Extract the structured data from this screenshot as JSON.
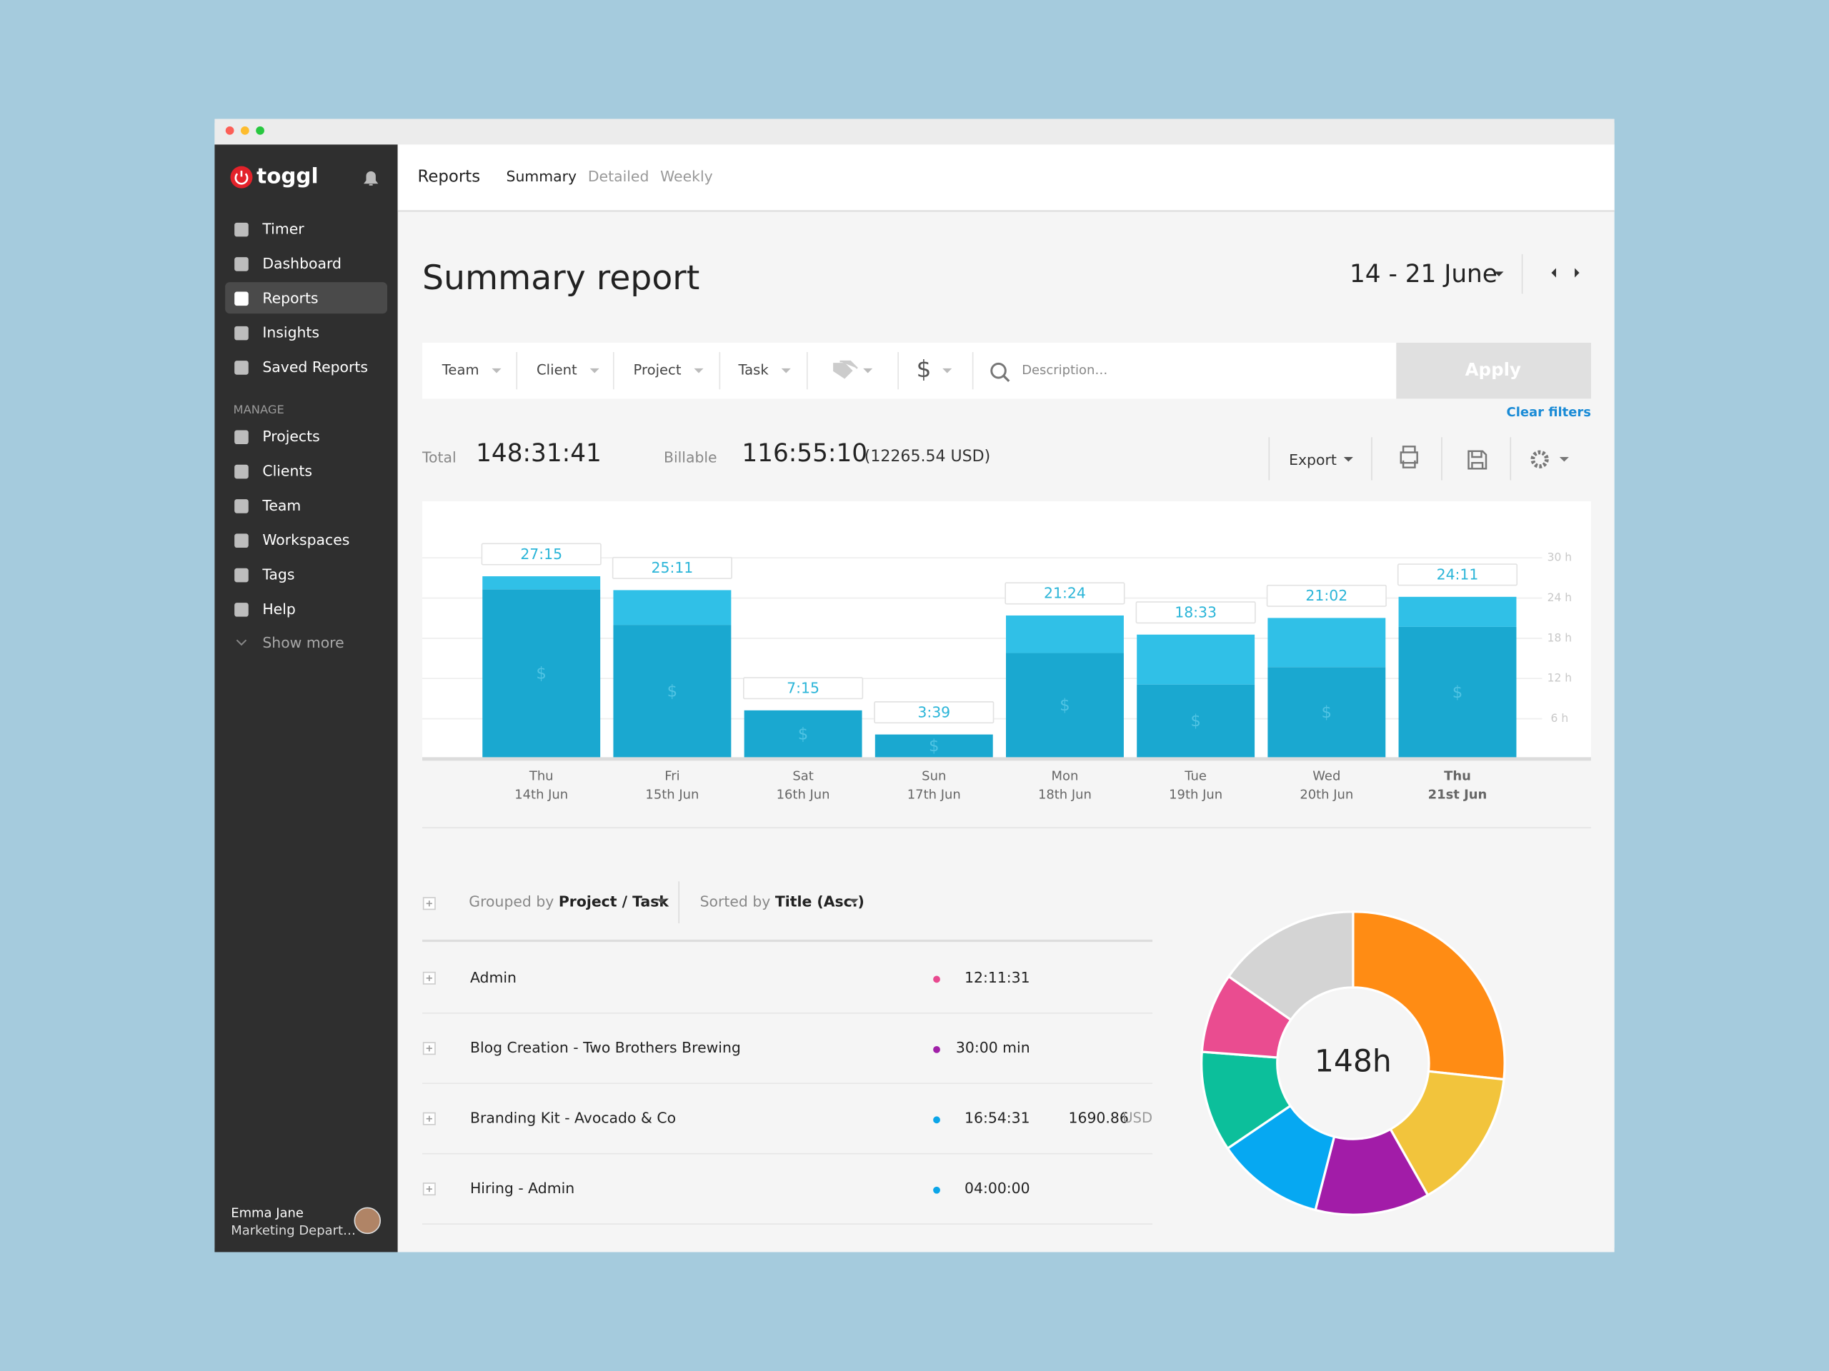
{
  "sidebar": {
    "logo": "toggl",
    "nav": [
      "Timer",
      "Dashboard",
      "Reports",
      "Insights",
      "Saved Reports"
    ],
    "manage_heading": "MANAGE",
    "manage": [
      "Projects",
      "Clients",
      "Team",
      "Workspaces",
      "Tags",
      "Help"
    ],
    "show_more": "Show more",
    "user": {
      "name": "Emma Jane",
      "department": "Marketing Depart…"
    }
  },
  "tabs": {
    "section": "Reports",
    "items": [
      "Summary",
      "Detailed",
      "Weekly"
    ]
  },
  "title": "Summary report",
  "date_range": "14 - 21 June",
  "filters": {
    "items": [
      "Team",
      "Client",
      "Project",
      "Task"
    ],
    "description_placeholder": "Description…",
    "apply": "Apply",
    "clear": "Clear filters"
  },
  "totals": {
    "total_label": "Total",
    "total": "148:31:41",
    "billable_label": "Billable",
    "billable": "116:55:10",
    "billable_amount": "(12265.54 USD)",
    "export": "Export"
  },
  "table": {
    "grouped_label": "Grouped by",
    "grouped_value": "Project / Task",
    "sorted_label": "Sorted by",
    "sorted_value": "Title (Asc.)",
    "rows": [
      {
        "title": "Admin",
        "color": "#e8498f",
        "duration": "12:11:31"
      },
      {
        "title": "Blog Creation - Two Brothers Brewing",
        "color": "#a020a8",
        "duration": "30:00 min"
      },
      {
        "title": "Branding Kit - Avocado & Co",
        "color": "#0ba5e8",
        "duration": "16:54:31",
        "amount": "1690.86",
        "currency": "USD"
      },
      {
        "title": "Hiring - Admin",
        "color": "#0ba5e8",
        "duration": "04:00:00"
      }
    ]
  },
  "chart_data": [
    {
      "type": "bar",
      "stacked": true,
      "categories": [
        [
          "Thu",
          "14th Jun"
        ],
        [
          "Fri",
          "15th Jun"
        ],
        [
          "Sat",
          "16th Jun"
        ],
        [
          "Sun",
          "17th Jun"
        ],
        [
          "Mon",
          "18th Jun"
        ],
        [
          "Tue",
          "19th Jun"
        ],
        [
          "Wed",
          "20th Jun"
        ],
        [
          "Thu",
          "21st Jun"
        ]
      ],
      "series": [
        {
          "color": "#1aa8d0",
          "values": [
            25.3,
            20,
            7.25,
            3.65,
            15.8,
            11.1,
            13.7,
            19.7
          ]
        },
        {
          "color": "#30c0e7",
          "values": [
            1.95,
            5.183,
            0,
            0,
            5.6,
            7.45,
            7.333,
            4.483
          ]
        }
      ],
      "totals": [
        27.25,
        25.183,
        7.25,
        3.65,
        21.4,
        18.55,
        21.033,
        24.183
      ],
      "value_labels": [
        "27:15",
        "25:11",
        "7:15",
        "3:39",
        "21:24",
        "18:33",
        "21:02",
        "24:11"
      ],
      "billable_symbol": "$",
      "ylim": [
        0,
        38
      ],
      "yticks": [
        {
          "value": 6,
          "label": "6 h"
        },
        {
          "value": 12,
          "label": "12 h"
        },
        {
          "value": 18,
          "label": "18 h"
        },
        {
          "value": 24,
          "label": "24 h"
        },
        {
          "value": 30,
          "label": "30 h"
        }
      ],
      "grid": true
    },
    {
      "type": "pie",
      "donut": true,
      "center_label": "148h",
      "values": [
        26.7,
        15.1,
        12.2,
        11.5,
        10.7,
        8.5,
        15.3
      ],
      "colors": [
        "#ff8c14",
        "#f2c43c",
        "#a21ca8",
        "#06a8f2",
        "#0cbf9b",
        "#ea4c90",
        "#d4d4d4"
      ]
    }
  ]
}
